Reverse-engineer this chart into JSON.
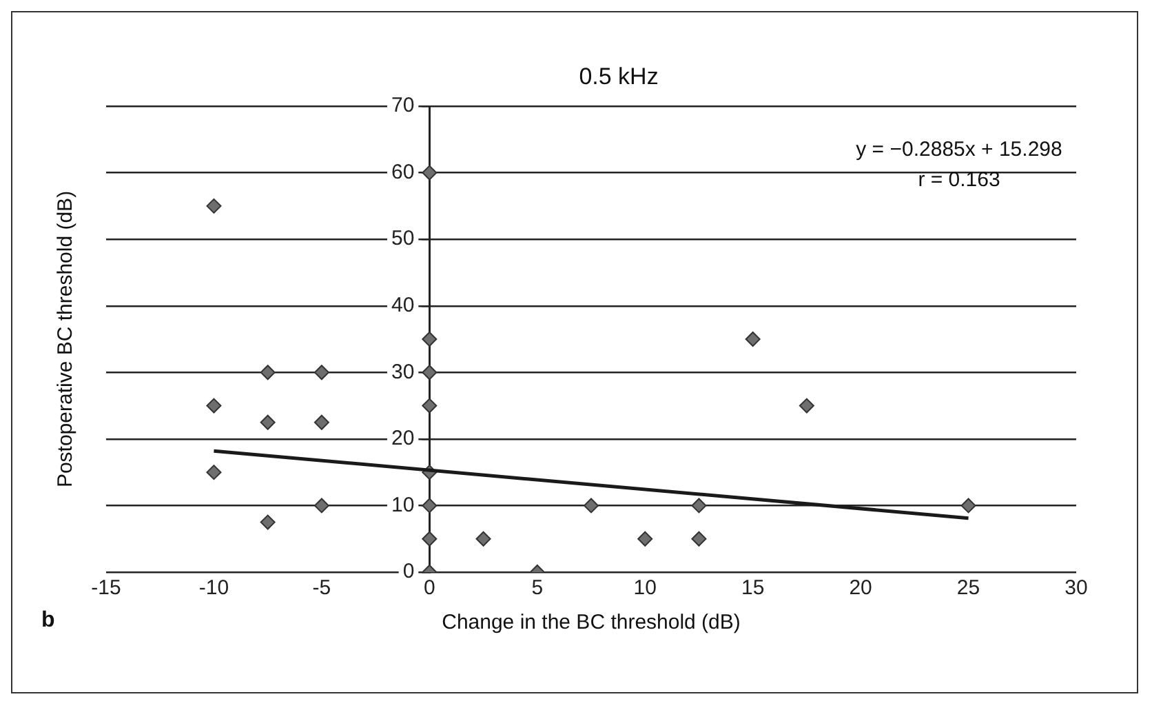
{
  "chart_data": {
    "type": "scatter",
    "title": "0.5 kHz",
    "xlabel": "Change in the BC threshold (dB)",
    "ylabel": "Postoperative BC threshold (dB)",
    "xlim": [
      -15,
      30
    ],
    "xticks": [
      -15,
      -10,
      -5,
      0,
      5,
      10,
      15,
      20,
      25,
      30
    ],
    "ylim": [
      0,
      70
    ],
    "yticks": [
      0,
      10,
      20,
      30,
      40,
      50,
      60,
      70
    ],
    "grid": "y",
    "marker": "diamond",
    "series": [
      {
        "type": "scatter",
        "color": "#6e6e6e",
        "x": [
          -10,
          -10,
          -10,
          -7.5,
          -7.5,
          -7.5,
          -5,
          -5,
          -5,
          0,
          0,
          0,
          0,
          0,
          0,
          0,
          0,
          2.5,
          5,
          7.5,
          10,
          12.5,
          12.5,
          15,
          17.5,
          25
        ],
        "values": [
          55,
          25,
          15,
          30,
          22.5,
          7.5,
          30,
          22.5,
          10,
          60,
          35,
          30,
          25,
          15,
          10,
          5,
          0,
          5,
          0,
          10,
          5,
          10,
          5,
          35,
          25,
          10
        ]
      },
      {
        "type": "line",
        "color": "#1a1a1a",
        "marker": "none",
        "x": [
          -10,
          25
        ],
        "values": [
          18.2,
          8.1
        ]
      }
    ],
    "annotations": [
      "y = −0.2885x + 15.298",
      "r = 0.163",
      "b"
    ]
  }
}
